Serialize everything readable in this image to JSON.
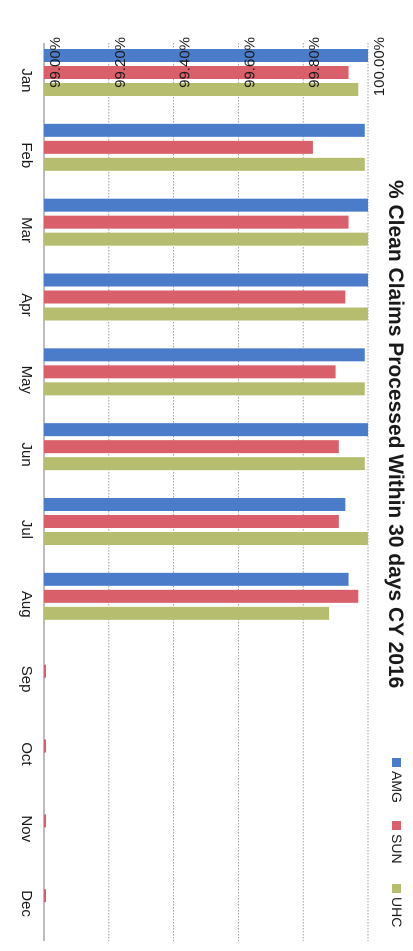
{
  "chart_data": {
    "type": "bar",
    "orientation": "vertical",
    "rotation": "page rotated 90 degrees clockwise",
    "title": "% Clean Claims Processed Within 30 days  CY 2016",
    "xlabel": "",
    "ylabel": "",
    "categories": [
      "Jan",
      "Feb",
      "Mar",
      "Apr",
      "May",
      "Jun",
      "Jul",
      "Aug",
      "Sep",
      "Oct",
      "Nov",
      "Dec"
    ],
    "y_ticks": [
      "99.00%",
      "99.20%",
      "99.40%",
      "99.60%",
      "99.80%",
      "100.00%"
    ],
    "y_tick_values": [
      99.0,
      99.2,
      99.4,
      99.6,
      99.8,
      100.0
    ],
    "ylim": [
      99.0,
      100.0
    ],
    "grid": true,
    "legend_placement": "top-right",
    "series": [
      {
        "name": "AMG",
        "color": "#4a7cc9",
        "values": [
          100.0,
          99.99,
          100.0,
          100.0,
          99.99,
          100.0,
          99.93,
          99.94,
          null,
          null,
          null,
          null
        ]
      },
      {
        "name": "SUN",
        "color": "#d9606a",
        "values": [
          99.94,
          99.83,
          99.94,
          99.93,
          99.9,
          99.91,
          99.91,
          99.97,
          null,
          null,
          null,
          null
        ]
      },
      {
        "name": "UHC",
        "color": "#b7bd6e",
        "values": [
          99.97,
          99.99,
          100.0,
          100.0,
          99.99,
          99.99,
          100.0,
          99.88,
          null,
          null,
          null,
          null
        ]
      }
    ]
  }
}
